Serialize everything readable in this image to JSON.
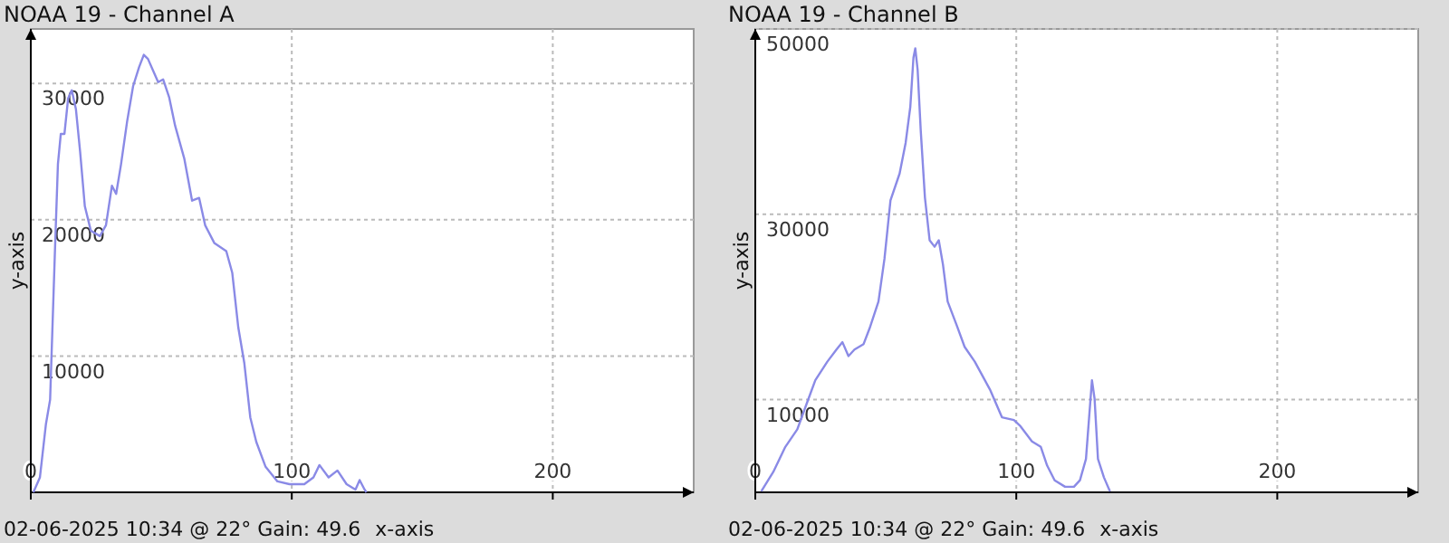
{
  "chart_data": [
    {
      "type": "line",
      "title": "NOAA 19 - Channel A",
      "xlabel": "x-axis",
      "ylabel": "y-axis",
      "annotations": [
        "02-06-2025 10:34 @ 22° Gain: 49.6"
      ],
      "grid": true,
      "xlim": [
        0,
        254
      ],
      "ylim": [
        0,
        34000
      ],
      "xticks": [
        0,
        100,
        200
      ],
      "yticks": [
        10000,
        20000,
        30000
      ],
      "series": [
        {
          "color": "#8a8ae6",
          "x": [
            1,
            3.5,
            5.8,
            7.4,
            9.2,
            10.4,
            11.5,
            12.9,
            14.3,
            15.7,
            17.3,
            18.9,
            20.7,
            23,
            26.5,
            28.8,
            31.1,
            32.7,
            34.6,
            36.9,
            39.2,
            41.5,
            43.3,
            44.9,
            47.2,
            48.8,
            50.7,
            53,
            55.3,
            58.8,
            61.8,
            64.5,
            66.8,
            70.3,
            74.9,
            77.2,
            79.5,
            81.8,
            84.1,
            86.4,
            89.9,
            94.5,
            99.1,
            104.8,
            108.3,
            110.6,
            114.1,
            117.5,
            121,
            124.4,
            126,
            127.9,
            128.6
          ],
          "values": [
            0,
            1100,
            5000,
            6800,
            17400,
            24100,
            26300,
            26300,
            28900,
            29500,
            28100,
            25000,
            21000,
            19200,
            18800,
            19600,
            22500,
            21900,
            24100,
            27200,
            29800,
            31200,
            32100,
            31800,
            30800,
            30100,
            30300,
            29000,
            26900,
            24500,
            21400,
            21600,
            19600,
            18300,
            17700,
            16100,
            12100,
            9500,
            5500,
            3700,
            1900,
            800,
            600,
            600,
            1100,
            2000,
            1100,
            1600,
            600,
            200,
            900,
            200,
            0
          ]
        }
      ]
    },
    {
      "type": "line",
      "title": "NOAA 19 - Channel B",
      "xlabel": "x-axis",
      "ylabel": "y-axis",
      "annotations": [
        "02-06-2025 10:34 @ 22° Gain: 49.6"
      ],
      "grid": true,
      "xlim": [
        0,
        254
      ],
      "ylim": [
        0,
        50000
      ],
      "xticks": [
        0,
        100,
        200
      ],
      "yticks": [
        10000,
        30000,
        50000
      ],
      "series": [
        {
          "color": "#8a8ae6",
          "x": [
            2.3,
            6.9,
            11.5,
            16.1,
            19.6,
            23,
            27.6,
            31.1,
            33.4,
            35.7,
            38,
            41.5,
            43.8,
            47.2,
            49.5,
            51.8,
            55.3,
            57.6,
            59.4,
            60.6,
            61.3,
            62.2,
            63.4,
            65,
            66.8,
            68.7,
            70.3,
            71.9,
            73.7,
            77.2,
            80.2,
            84.1,
            89.9,
            94.5,
            99.1,
            101.4,
            106,
            109.4,
            111.8,
            114.7,
            118.7,
            122.1,
            124.4,
            126.7,
            128.1,
            129,
            130,
            131.3,
            133.6,
            135.9
          ],
          "values": [
            100,
            2200,
            4900,
            6800,
            9500,
            12100,
            14100,
            15400,
            16200,
            14700,
            15400,
            16000,
            17700,
            20600,
            25200,
            31500,
            34400,
            37700,
            41600,
            46900,
            47900,
            45600,
            39000,
            31800,
            27200,
            26500,
            27200,
            24600,
            20600,
            18000,
            15700,
            14100,
            11100,
            8100,
            7800,
            7200,
            5500,
            4900,
            2900,
            1300,
            600,
            600,
            1300,
            3600,
            8800,
            12100,
            10100,
            3600,
            1600,
            100
          ]
        }
      ]
    }
  ]
}
